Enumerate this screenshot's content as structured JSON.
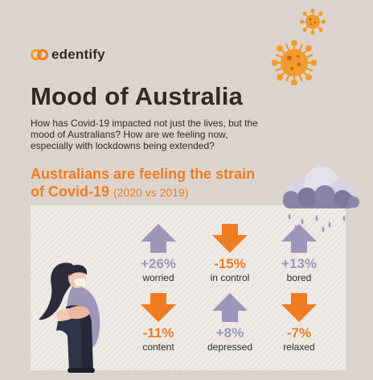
{
  "brand": {
    "name": "edentify"
  },
  "header": {
    "title": "Mood of Australia",
    "intro": "How has Covid-19 impacted not just the lives, but the mood of Australians? How are we feeling now, especially with lockdowns being extended?"
  },
  "section": {
    "subtitle": "Australians are feeling the strain of Covid-19",
    "note": "(2020 vs 2019)"
  },
  "stats": [
    {
      "value": "+26%",
      "label": "worried",
      "direction": "up"
    },
    {
      "value": "-15%",
      "label": "in control",
      "direction": "down"
    },
    {
      "value": "+13%",
      "label": "bored",
      "direction": "up"
    },
    {
      "value": "-11%",
      "label": "content",
      "direction": "down"
    },
    {
      "value": "+8%",
      "label": "depressed",
      "direction": "up"
    },
    {
      "value": "-7%",
      "label": "relaxed",
      "direction": "down"
    }
  ],
  "colors": {
    "background": "#dcd4cc",
    "accent_orange": "#ef7b22",
    "arrow_up": "#9d96b8",
    "text_dark": "#2b2b2b",
    "virus": "#f29a2e",
    "cloud": "#8a85a6"
  },
  "icons": [
    "virus-icon",
    "rain-cloud-icon",
    "arrow-up-icon",
    "arrow-down-icon",
    "sad-person-illustration"
  ]
}
